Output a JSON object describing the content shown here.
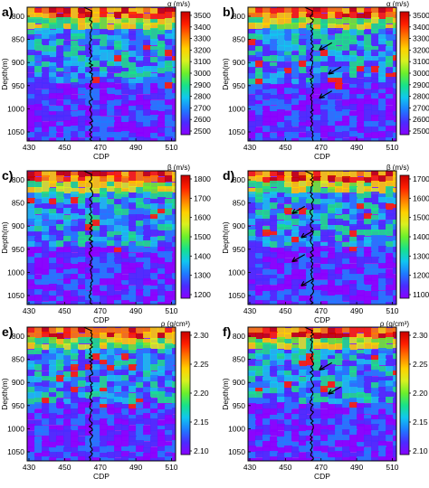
{
  "figure": {
    "panels": [
      {
        "label": "a)",
        "cbar_title": "α (m/s)",
        "cbar_ticks": [
          "3500",
          "3400",
          "3300",
          "3200",
          "3100",
          "3000",
          "2900",
          "2800",
          "2700",
          "2600",
          "2500"
        ],
        "arrows": 0
      },
      {
        "label": "b)",
        "cbar_title": "α (m/s)",
        "cbar_ticks": [
          "3500",
          "3400",
          "3300",
          "3200",
          "3100",
          "3000",
          "2900",
          "2800",
          "2700",
          "2600",
          "2500"
        ],
        "arrows": 3
      },
      {
        "label": "c)",
        "cbar_title": "β (m/s)",
        "cbar_ticks": [
          "1800",
          "1700",
          "1600",
          "1500",
          "1400",
          "1300",
          "1200"
        ],
        "arrows": 0
      },
      {
        "label": "d)",
        "cbar_title": "β (m/s)",
        "cbar_ticks": [
          "1700",
          "1600",
          "1500",
          "1400",
          "1300",
          "1200",
          "1100"
        ],
        "arrows": 4
      },
      {
        "label": "e)",
        "cbar_title": "ρ (g/cm³)",
        "cbar_ticks": [
          "2.30",
          "2.25",
          "2.20",
          "2.15",
          "2.10"
        ],
        "arrows": 0
      },
      {
        "label": "f)",
        "cbar_title": "ρ (g/cm³)",
        "cbar_ticks": [
          "2.30",
          "2.25",
          "2.20",
          "2.15",
          "2.10"
        ],
        "arrows": 2
      }
    ],
    "x_ticks": [
      "430",
      "450",
      "470",
      "490",
      "510"
    ],
    "y_ticks": [
      "800",
      "850",
      "900",
      "950",
      "1000",
      "1050"
    ],
    "xlabel": "CDP",
    "ylabel": "Depth(m)",
    "colormap": [
      "#8a00ff",
      "#4a2cff",
      "#1e7bff",
      "#10c6f0",
      "#18e28a",
      "#6cf02c",
      "#d8f020",
      "#ffd000",
      "#ff7a00",
      "#ff1e00",
      "#c80000"
    ]
  }
}
